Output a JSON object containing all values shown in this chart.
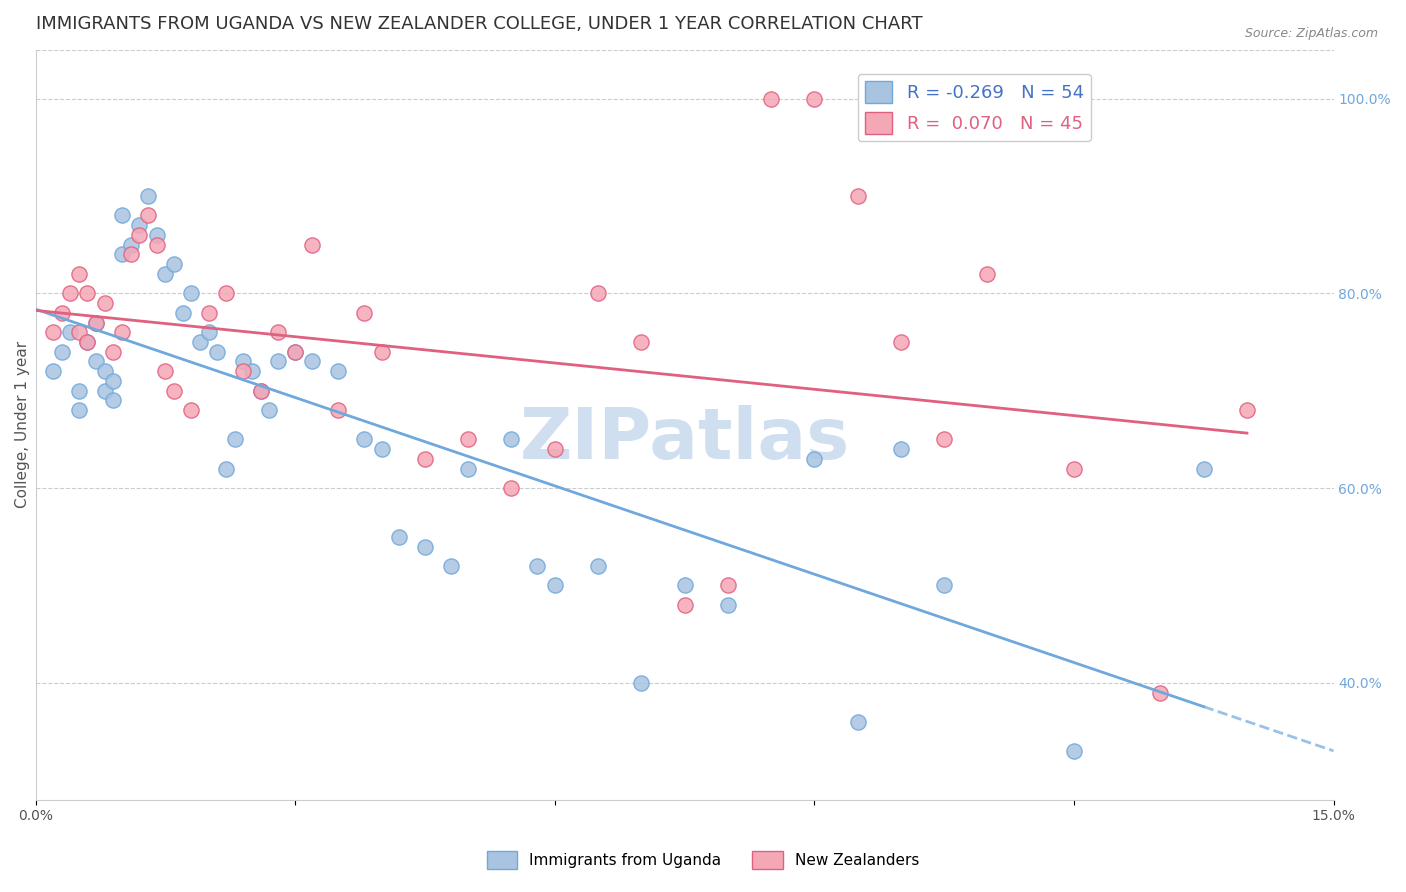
{
  "title": "IMMIGRANTS FROM UGANDA VS NEW ZEALANDER COLLEGE, UNDER 1 YEAR CORRELATION CHART",
  "source": "Source: ZipAtlas.com",
  "ylabel": "College, Under 1 year",
  "legend_blue_R": "-0.269",
  "legend_blue_N": "54",
  "legend_pink_R": "0.070",
  "legend_pink_N": "45",
  "legend_label_blue": "Immigrants from Uganda",
  "legend_label_pink": "New Zealanders",
  "xlim": [
    0.0,
    0.15
  ],
  "ylim": [
    0.28,
    1.05
  ],
  "xtick_positions": [
    0.0,
    0.03,
    0.06,
    0.09,
    0.12,
    0.15
  ],
  "xtick_labels": [
    "0.0%",
    "",
    "",
    "",
    "",
    "15.0%"
  ],
  "yticks_right": [
    0.4,
    0.6,
    0.8,
    1.0
  ],
  "ytick_labels_right": [
    "40.0%",
    "60.0%",
    "80.0%",
    "100.0%"
  ],
  "color_blue": "#a8c4e0",
  "color_pink": "#f4a7b5",
  "color_blue_line": "#6fa8dc",
  "color_pink_line": "#e06080",
  "watermark": "ZIPatlas",
  "watermark_color": "#d0dff0",
  "blue_scatter_x": [
    0.002,
    0.003,
    0.004,
    0.005,
    0.005,
    0.006,
    0.007,
    0.007,
    0.008,
    0.008,
    0.009,
    0.009,
    0.01,
    0.01,
    0.011,
    0.012,
    0.013,
    0.014,
    0.015,
    0.016,
    0.017,
    0.018,
    0.019,
    0.02,
    0.021,
    0.022,
    0.023,
    0.024,
    0.025,
    0.026,
    0.027,
    0.028,
    0.03,
    0.032,
    0.035,
    0.038,
    0.04,
    0.042,
    0.045,
    0.048,
    0.05,
    0.055,
    0.058,
    0.06,
    0.065,
    0.07,
    0.075,
    0.08,
    0.09,
    0.095,
    0.1,
    0.105,
    0.12,
    0.135
  ],
  "blue_scatter_y": [
    0.72,
    0.74,
    0.76,
    0.7,
    0.68,
    0.75,
    0.73,
    0.77,
    0.72,
    0.7,
    0.69,
    0.71,
    0.84,
    0.88,
    0.85,
    0.87,
    0.9,
    0.86,
    0.82,
    0.83,
    0.78,
    0.8,
    0.75,
    0.76,
    0.74,
    0.62,
    0.65,
    0.73,
    0.72,
    0.7,
    0.68,
    0.73,
    0.74,
    0.73,
    0.72,
    0.65,
    0.64,
    0.55,
    0.54,
    0.52,
    0.62,
    0.65,
    0.52,
    0.5,
    0.52,
    0.4,
    0.5,
    0.48,
    0.63,
    0.36,
    0.64,
    0.5,
    0.33,
    0.62
  ],
  "pink_scatter_x": [
    0.002,
    0.003,
    0.004,
    0.005,
    0.005,
    0.006,
    0.006,
    0.007,
    0.008,
    0.009,
    0.01,
    0.011,
    0.012,
    0.013,
    0.014,
    0.015,
    0.016,
    0.018,
    0.02,
    0.022,
    0.024,
    0.026,
    0.028,
    0.03,
    0.032,
    0.035,
    0.038,
    0.04,
    0.045,
    0.05,
    0.055,
    0.06,
    0.065,
    0.07,
    0.075,
    0.08,
    0.085,
    0.09,
    0.095,
    0.1,
    0.105,
    0.11,
    0.12,
    0.13,
    0.14
  ],
  "pink_scatter_y": [
    0.76,
    0.78,
    0.8,
    0.82,
    0.76,
    0.8,
    0.75,
    0.77,
    0.79,
    0.74,
    0.76,
    0.84,
    0.86,
    0.88,
    0.85,
    0.72,
    0.7,
    0.68,
    0.78,
    0.8,
    0.72,
    0.7,
    0.76,
    0.74,
    0.85,
    0.68,
    0.78,
    0.74,
    0.63,
    0.65,
    0.6,
    0.64,
    0.8,
    0.75,
    0.48,
    0.5,
    1.0,
    1.0,
    0.9,
    0.75,
    0.65,
    0.82,
    0.62,
    0.39,
    0.68
  ],
  "grid_color": "#cccccc",
  "background_color": "#ffffff",
  "title_fontsize": 13,
  "axis_label_fontsize": 11,
  "tick_fontsize": 10,
  "tick_color_right": "#6fa8dc",
  "legend_text_blue": "#4472c4",
  "legend_text_pink": "#e06080"
}
